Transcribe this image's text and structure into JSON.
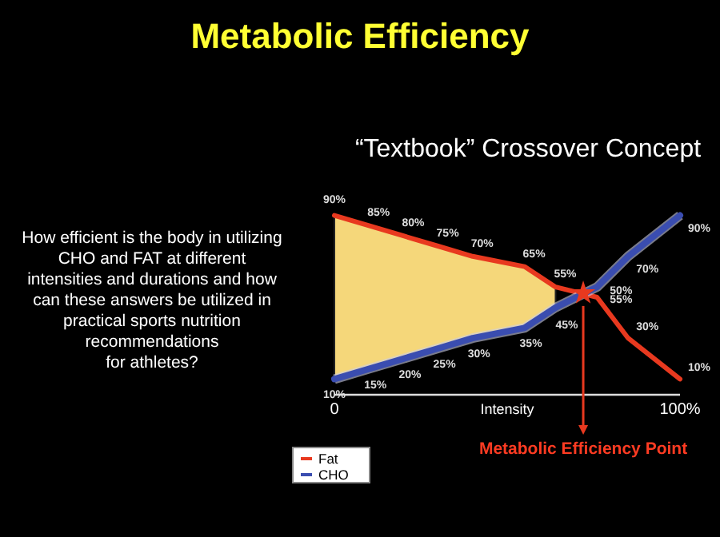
{
  "chart_data": {
    "type": "line",
    "title": "Metabolic Efficiency",
    "subtitle": "“Textbook” Crossover Concept",
    "xlabel": "Intensity",
    "x": [
      0,
      10,
      20,
      30,
      40,
      55,
      64,
      76,
      85,
      100
    ],
    "xlim": [
      0,
      100
    ],
    "xticks": [
      {
        "value": 0,
        "label": "0"
      },
      {
        "value": 100,
        "label": "100%"
      }
    ],
    "tick_labels": "x",
    "series": [
      {
        "name": "Fat",
        "color": "#e8391f",
        "values": [
          90,
          85,
          80,
          75,
          70,
          65,
          55,
          50,
          30,
          10
        ],
        "value_labels": [
          "90%",
          "85%",
          "80%",
          "75%",
          "70%",
          "65%",
          "55%",
          "50%",
          "30%",
          "10%"
        ],
        "lower": [
          10,
          15,
          20,
          25,
          30,
          35,
          45,
          null,
          null,
          null
        ],
        "upper": [
          90,
          85,
          80,
          75,
          70,
          65,
          55,
          null,
          null,
          null
        ]
      },
      {
        "name": "CHO",
        "color": "#3a4db0",
        "values": [
          10,
          15,
          20,
          25,
          30,
          35,
          45,
          55,
          70,
          90
        ],
        "value_labels": [
          "10%",
          "15%",
          "20%",
          "25%",
          "30%",
          "35%",
          "45%",
          "55%",
          "70%",
          "90%"
        ]
      }
    ],
    "annotations": [
      "How efficient is the body in utilizing\nCHO and FAT at different\nintensities and durations and how\ncan these answers be utilized in\npractical sports nutrition\nrecommendations\nfor athletes?",
      {
        "text": "Metabolic Efficiency Point",
        "x": 72,
        "y": 52
      }
    ],
    "legend": "bottom left",
    "marker": "none",
    "line_style": "solid"
  }
}
